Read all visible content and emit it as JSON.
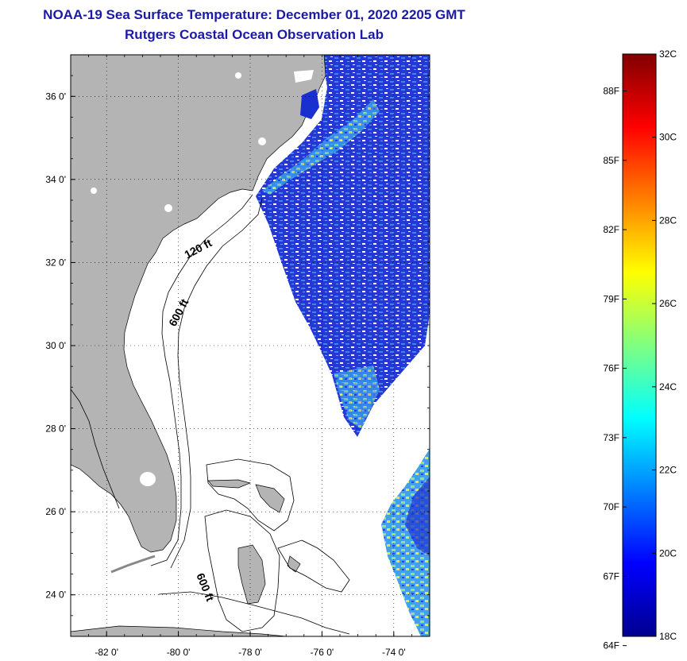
{
  "header": {
    "title": "NOAA-19 Sea Surface Temperature:  December 01, 2020 2205 GMT",
    "subtitle": "Rutgers Coastal Ocean Observation Lab"
  },
  "map": {
    "lon_range": [
      -83,
      -73
    ],
    "lat_range": [
      23,
      37
    ],
    "lon_ticks": [
      {
        "value": -82,
        "label": "-82 0'"
      },
      {
        "value": -80,
        "label": "-80 0'"
      },
      {
        "value": -78,
        "label": "-78 0'"
      },
      {
        "value": -76,
        "label": "-76 0'"
      },
      {
        "value": -74,
        "label": "-74 0'"
      }
    ],
    "lat_ticks": [
      {
        "value": 36,
        "label": "36 0'"
      },
      {
        "value": 34,
        "label": "34 0'"
      },
      {
        "value": 32,
        "label": "32 0'"
      },
      {
        "value": 30,
        "label": "30 0'"
      },
      {
        "value": 28,
        "label": "28 0'"
      },
      {
        "value": 26,
        "label": "26 0'"
      },
      {
        "value": 24,
        "label": "24 0'"
      }
    ],
    "grid": "dotted",
    "land_color": "#b4b4b4",
    "isobath_labels": [
      {
        "text": "120 ft",
        "lon": -79.4,
        "lat": 32.25,
        "rotate": -28
      },
      {
        "text": "600 ft",
        "lon": -79.9,
        "lat": 30.75,
        "rotate": -62
      },
      {
        "text": "600 ft",
        "lon": -79.35,
        "lat": 24.15,
        "rotate": 68
      }
    ]
  },
  "colorbar": {
    "min_c": 18,
    "max_c": 32,
    "celsius_labels": [
      "32C",
      "30C",
      "28C",
      "26C",
      "24C",
      "22C",
      "20C",
      "18C"
    ],
    "fahrenheit_labels": [
      "88F",
      "85F",
      "82F",
      "79F",
      "76F",
      "73F",
      "70F",
      "67F",
      "64F"
    ],
    "celsius_values": [
      32,
      30,
      28,
      26,
      24,
      22,
      20,
      18
    ],
    "fahrenheit_values": [
      88,
      85,
      82,
      79,
      76,
      73,
      70,
      67,
      64
    ],
    "colors": [
      "#00008f",
      "#0000ff",
      "#0080ff",
      "#00ffff",
      "#80ff80",
      "#ffff00",
      "#ff8000",
      "#ff0000",
      "#800000"
    ]
  }
}
